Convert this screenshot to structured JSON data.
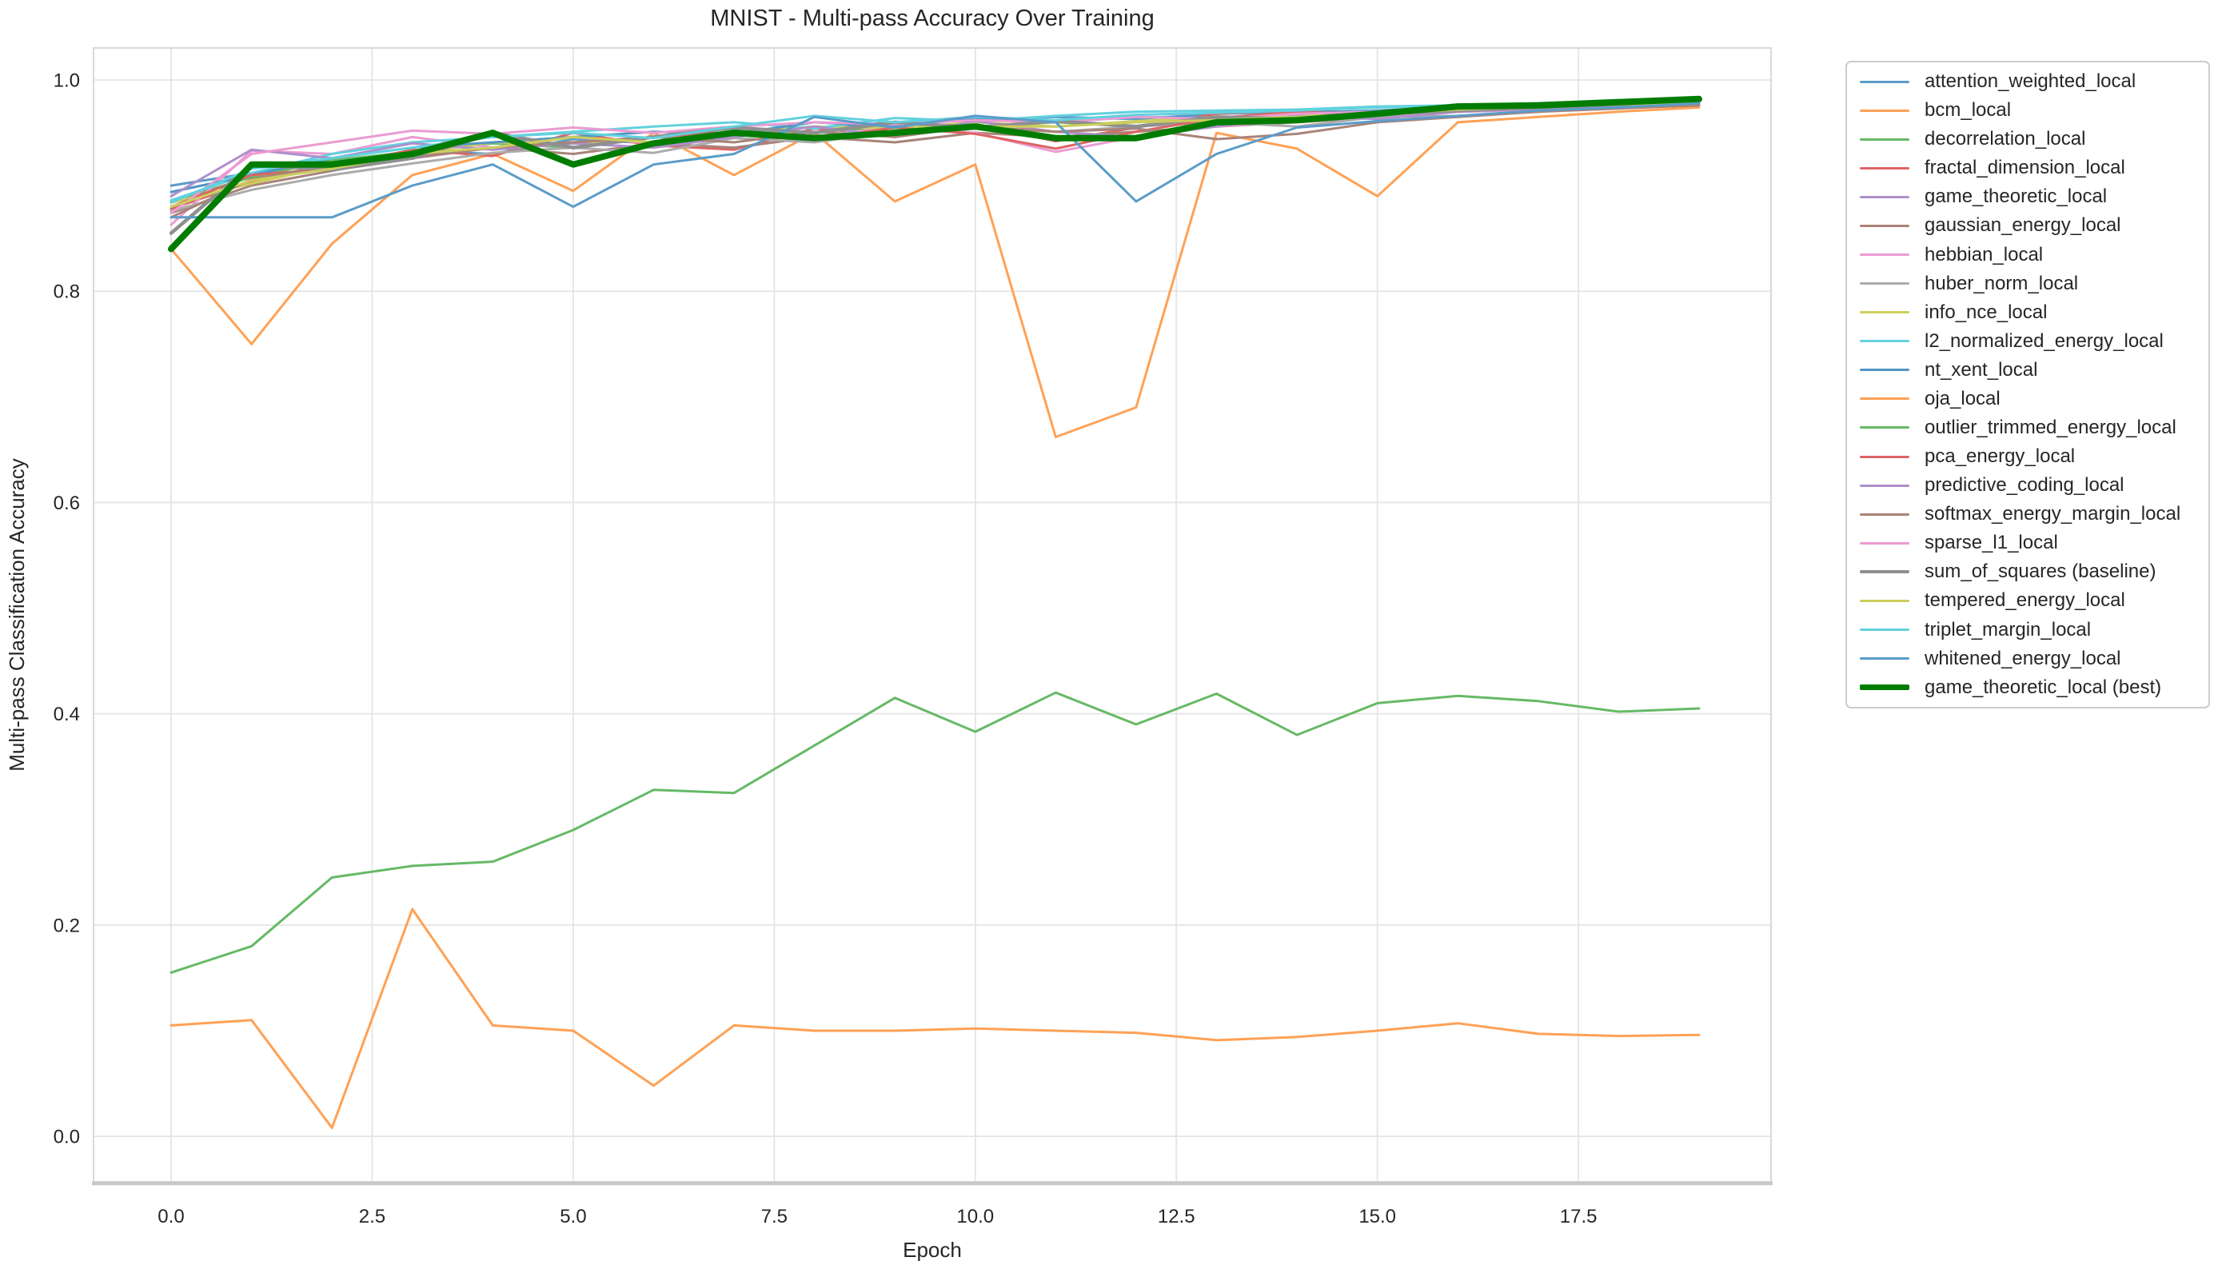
{
  "title": "MNIST - Multi-pass Accuracy Over Training",
  "chart_data": {
    "type": "line",
    "title": "MNIST - Multi-pass Accuracy Over Training",
    "xlabel": "Epoch",
    "ylabel": "Multi-pass Classification Accuracy",
    "grid": true,
    "legend_position": "outside-right",
    "xlim": [
      -0.9644,
      19.8949
    ],
    "ylim": [
      -0.0431,
      1.0303
    ],
    "xticks": [
      0,
      2.5,
      5,
      7.5,
      10,
      12.5,
      15,
      17.5
    ],
    "xtick_labels": [
      "0.0",
      "2.5",
      "5.0",
      "7.5",
      "10.0",
      "12.5",
      "15.0",
      "17.5"
    ],
    "yticks": [
      0.0,
      0.2,
      0.4,
      0.6,
      0.8,
      1.0
    ],
    "ytick_labels": [
      "0.0",
      "0.2",
      "0.4",
      "0.6",
      "0.8",
      "1.0"
    ],
    "x": [
      0,
      1,
      2,
      3,
      4,
      5,
      6,
      7,
      8,
      9,
      10,
      11,
      12,
      13,
      14,
      15,
      16,
      17,
      18,
      19
    ],
    "series": [
      {
        "name": "attention_weighted_local",
        "color": "#5B9CC9",
        "line_width": 3,
        "values": [
          0.9,
          0.912,
          0.922,
          0.933,
          0.93,
          0.944,
          0.94,
          0.952,
          0.955,
          0.96,
          0.962,
          0.965,
          0.963,
          0.968,
          0.97,
          0.97,
          0.974,
          0.976,
          0.978,
          0.98
        ]
      },
      {
        "name": "bcm_local",
        "color": "#FFA155",
        "line_width": 3,
        "values": [
          0.84,
          0.75,
          0.845,
          0.91,
          0.93,
          0.895,
          0.95,
          0.91,
          0.95,
          0.885,
          0.92,
          0.662,
          0.69,
          0.95,
          0.935,
          0.89,
          0.96,
          0.965,
          0.97,
          0.974
        ]
      },
      {
        "name": "decorrelation_local",
        "color": "#66B966",
        "line_width": 3,
        "values": [
          0.885,
          0.908,
          0.924,
          0.932,
          0.94,
          0.936,
          0.946,
          0.95,
          0.956,
          0.951,
          0.956,
          0.96,
          0.956,
          0.964,
          0.969,
          0.971,
          0.974,
          0.976,
          0.979,
          0.981
        ]
      },
      {
        "name": "fractal_dimension_local",
        "color": "#DD6465",
        "line_width": 3,
        "values": [
          0.878,
          0.904,
          0.918,
          0.934,
          0.928,
          0.95,
          0.938,
          0.934,
          0.954,
          0.948,
          0.958,
          0.942,
          0.955,
          0.968,
          0.972,
          0.968,
          0.971,
          0.974,
          0.976,
          0.979
        ]
      },
      {
        "name": "game_theoretic_local",
        "color": "#AE8FCC",
        "line_width": 3,
        "values": [
          0.84,
          0.92,
          0.92,
          0.93,
          0.95,
          0.92,
          0.94,
          0.95,
          0.945,
          0.95,
          0.956,
          0.945,
          0.945,
          0.96,
          0.962,
          0.968,
          0.975,
          0.976,
          0.979,
          0.982
        ]
      },
      {
        "name": "gaussian_energy_local",
        "color": "#A98378",
        "line_width": 3,
        "values": [
          0.874,
          0.9,
          0.914,
          0.928,
          0.936,
          0.93,
          0.94,
          0.936,
          0.946,
          0.941,
          0.95,
          0.946,
          0.951,
          0.956,
          0.96,
          0.965,
          0.97,
          0.972,
          0.975,
          0.978
        ]
      },
      {
        "name": "hebbian_local",
        "color": "#EB9BD2",
        "line_width": 3,
        "values": [
          0.863,
          0.933,
          0.93,
          0.946,
          0.936,
          0.946,
          0.94,
          0.951,
          0.946,
          0.956,
          0.95,
          0.932,
          0.946,
          0.956,
          0.961,
          0.966,
          0.97,
          0.972,
          0.975,
          0.977
        ]
      },
      {
        "name": "huber_norm_local",
        "color": "#ABABAB",
        "line_width": 3,
        "values": [
          0.876,
          0.896,
          0.91,
          0.921,
          0.931,
          0.936,
          0.931,
          0.945,
          0.941,
          0.951,
          0.955,
          0.951,
          0.956,
          0.96,
          0.956,
          0.965,
          0.966,
          0.97,
          0.974,
          0.976
        ]
      },
      {
        "name": "info_nce_local",
        "color": "#CCCE5D",
        "line_width": 3,
        "values": [
          0.884,
          0.902,
          0.919,
          0.93,
          0.941,
          0.94,
          0.946,
          0.951,
          0.956,
          0.954,
          0.96,
          0.956,
          0.961,
          0.965,
          0.966,
          0.97,
          0.974,
          0.976,
          0.978,
          0.98
        ]
      },
      {
        "name": "l2_normalized_energy_local",
        "color": "#62D1DE",
        "line_width": 3,
        "values": [
          0.886,
          0.912,
          0.93,
          0.941,
          0.946,
          0.951,
          0.956,
          0.96,
          0.954,
          0.964,
          0.961,
          0.966,
          0.97,
          0.971,
          0.972,
          0.975,
          0.976,
          0.978,
          0.98,
          0.982
        ]
      },
      {
        "name": "nt_xent_local",
        "color": "#5295C4",
        "line_width": 3,
        "values": [
          0.894,
          0.91,
          0.926,
          0.936,
          0.941,
          0.946,
          0.951,
          0.949,
          0.96,
          0.956,
          0.964,
          0.96,
          0.965,
          0.964,
          0.969,
          0.971,
          0.975,
          0.977,
          0.979,
          0.981
        ]
      },
      {
        "name": "oja_local",
        "color": "#FFA155",
        "line_width": 3,
        "values": [
          0.105,
          0.11,
          0.008,
          0.215,
          0.105,
          0.1,
          0.048,
          0.105,
          0.1,
          0.1,
          0.102,
          0.1,
          0.098,
          0.091,
          0.094,
          0.1,
          0.107,
          0.097,
          0.095,
          0.096
        ]
      },
      {
        "name": "outlier_trimmed_energy_local",
        "color": "#66B966",
        "line_width": 3,
        "values": [
          0.155,
          0.18,
          0.245,
          0.256,
          0.26,
          0.29,
          0.328,
          0.325,
          0.37,
          0.415,
          0.383,
          0.42,
          0.39,
          0.419,
          0.38,
          0.41,
          0.417,
          0.412,
          0.402,
          0.405
        ]
      },
      {
        "name": "pca_energy_local",
        "color": "#DD6465",
        "line_width": 3,
        "values": [
          0.88,
          0.91,
          0.916,
          0.926,
          0.936,
          0.941,
          0.946,
          0.951,
          0.944,
          0.955,
          0.949,
          0.935,
          0.951,
          0.964,
          0.97,
          0.967,
          0.972,
          0.974,
          0.977,
          0.979
        ]
      },
      {
        "name": "predictive_coding_local",
        "color": "#AE8FCC",
        "line_width": 3,
        "values": [
          0.89,
          0.934,
          0.926,
          0.94,
          0.934,
          0.94,
          0.936,
          0.946,
          0.956,
          0.946,
          0.961,
          0.951,
          0.946,
          0.956,
          0.966,
          0.963,
          0.97,
          0.973,
          0.976,
          0.978
        ]
      },
      {
        "name": "softmax_energy_margin_local",
        "color": "#A98378",
        "line_width": 3,
        "values": [
          0.87,
          0.906,
          0.92,
          0.926,
          0.936,
          0.941,
          0.946,
          0.941,
          0.951,
          0.946,
          0.956,
          0.951,
          0.954,
          0.944,
          0.949,
          0.96,
          0.965,
          0.97,
          0.973,
          0.976
        ]
      },
      {
        "name": "sparse_l1_local",
        "color": "#EB9BD2",
        "line_width": 3,
        "values": [
          0.874,
          0.93,
          0.941,
          0.952,
          0.949,
          0.955,
          0.95,
          0.956,
          0.96,
          0.958,
          0.962,
          0.96,
          0.965,
          0.963,
          0.968,
          0.97,
          0.973,
          0.975,
          0.978,
          0.98
        ]
      },
      {
        "name": "sum_of_squares (baseline)",
        "color": "#8F8F8F",
        "line_width": 4.5,
        "values": [
          0.855,
          0.92,
          0.915,
          0.926,
          0.95,
          0.936,
          0.946,
          0.955,
          0.95,
          0.96,
          0.955,
          0.961,
          0.956,
          0.965,
          0.963,
          0.968,
          0.971,
          0.974,
          0.977,
          0.98
        ]
      },
      {
        "name": "tempered_energy_local",
        "color": "#CCCE5D",
        "line_width": 3,
        "values": [
          0.88,
          0.905,
          0.916,
          0.93,
          0.936,
          0.946,
          0.941,
          0.95,
          0.946,
          0.951,
          0.956,
          0.956,
          0.96,
          0.962,
          0.965,
          0.968,
          0.972,
          0.975,
          0.977,
          0.979
        ]
      },
      {
        "name": "triplet_margin_local",
        "color": "#62D1DE",
        "line_width": 3,
        "values": [
          0.884,
          0.916,
          0.926,
          0.936,
          0.946,
          0.95,
          0.945,
          0.956,
          0.966,
          0.96,
          0.965,
          0.962,
          0.967,
          0.969,
          0.971,
          0.974,
          0.976,
          0.978,
          0.981,
          0.983
        ]
      },
      {
        "name": "whitened_energy_local",
        "color": "#5B9CC9",
        "line_width": 3,
        "values": [
          0.87,
          0.87,
          0.87,
          0.9,
          0.92,
          0.88,
          0.92,
          0.93,
          0.965,
          0.955,
          0.966,
          0.96,
          0.885,
          0.93,
          0.955,
          0.961,
          0.966,
          0.971,
          0.974,
          0.978
        ]
      },
      {
        "name": "game_theoretic_local (best)",
        "color": "#007D00",
        "line_width": 8,
        "values": [
          0.84,
          0.92,
          0.92,
          0.93,
          0.95,
          0.92,
          0.94,
          0.95,
          0.945,
          0.95,
          0.956,
          0.945,
          0.945,
          0.96,
          0.962,
          0.968,
          0.975,
          0.976,
          0.979,
          0.982
        ]
      }
    ],
    "style": {
      "grid_color": "#E4E4E4",
      "spine_color": "#D5D5D5",
      "bottom_spine_color": "#C8C8C8",
      "text_color": "#262626",
      "background": "#FFFFFF"
    }
  }
}
